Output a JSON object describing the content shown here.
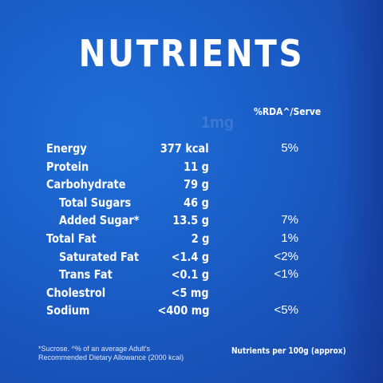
{
  "title": "NUTRIENTS",
  "column_header": "%RDA^/Serve",
  "watermark": "1mg",
  "nutrients": [
    {
      "name": "Energy",
      "amount": "377 kcal",
      "rda": "5%"
    },
    {
      "name": "Protein",
      "amount": "11 g",
      "rda": ""
    },
    {
      "name": "Carbohydrate",
      "amount": "79 g",
      "rda": ""
    },
    {
      "name": "Total Sugars",
      "amount": "46 g",
      "rda": ""
    },
    {
      "name": "Added Sugar*",
      "amount": "13.5 g",
      "rda": "7%"
    },
    {
      "name": "Total Fat",
      "amount": "2 g",
      "rda": "1%"
    },
    {
      "name": "Saturated Fat",
      "amount": "<1.4 g",
      "rda": "<2%"
    },
    {
      "name": "Trans Fat",
      "amount": "<0.1 g",
      "rda": "<1%"
    },
    {
      "name": "Cholestrol",
      "amount": "<5 mg",
      "rda": ""
    },
    {
      "name": "Sodium",
      "amount": "<400 mg",
      "rda": "<5%"
    }
  ],
  "footnote": "*Sucrose. ^% of an average Adult's Recommended Dietary Allowance (2000 kcal)",
  "basis": "Nutrients per 100g (approx)",
  "colors": {
    "background": "#1a5cc6",
    "text": "#ffffff"
  }
}
